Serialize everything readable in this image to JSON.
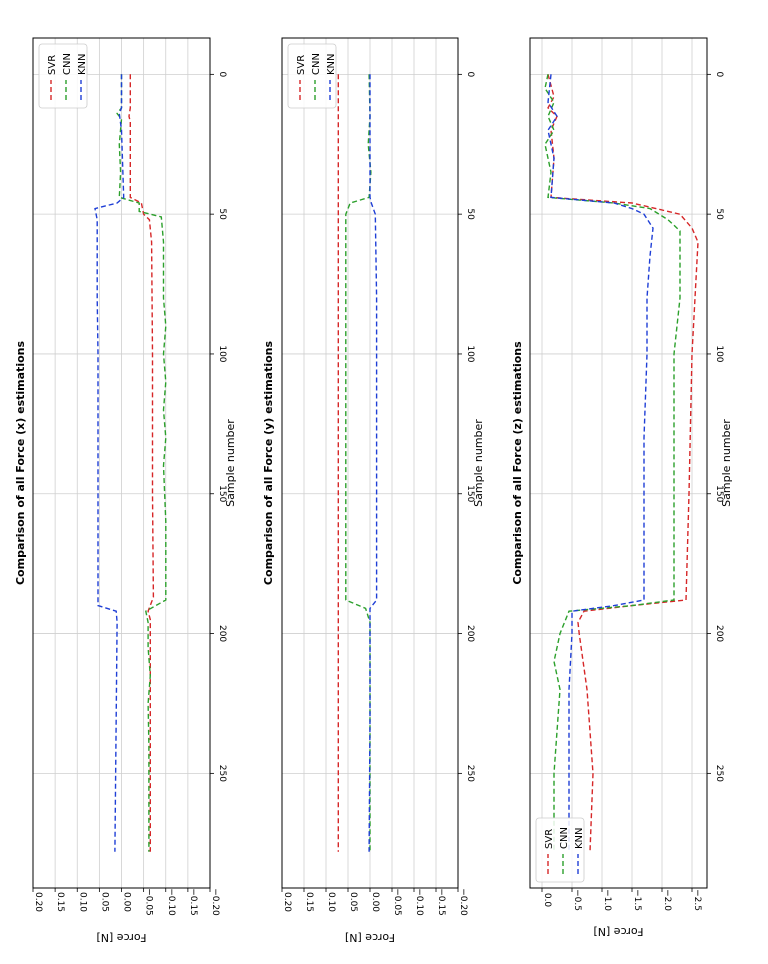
{
  "chart_data": [
    {
      "type": "line",
      "title": "Comparison of all Force (x) estimations",
      "xlabel": "Sample number",
      "ylabel": "Force [N]",
      "xlim": [
        -13,
        291
      ],
      "ylim": [
        -0.2,
        0.2
      ],
      "xticks": [
        0,
        50,
        100,
        150,
        200,
        250
      ],
      "xtick_labels": [
        "0",
        "50",
        "100",
        "150",
        "200",
        "250"
      ],
      "yticks": [
        0.2,
        0.15,
        0.1,
        0.05,
        0.0,
        -0.05,
        -0.1,
        -0.15,
        -0.2
      ],
      "ytick_labels": [
        "0.20",
        "0.15",
        "0.10",
        "0.05",
        "0.00",
        "−0.05",
        "−0.10",
        "−0.15",
        "−0.20"
      ],
      "grid": true,
      "legend_position": "upper-right",
      "series": [
        {
          "name": "SVR",
          "color": "#d62728",
          "points": [
            [
              0,
              -0.02
            ],
            [
              12,
              -0.02
            ],
            [
              15,
              -0.017
            ],
            [
              17,
              -0.02
            ],
            [
              44,
              -0.02
            ],
            [
              46,
              -0.045
            ],
            [
              50,
              -0.05
            ],
            [
              52,
              -0.063
            ],
            [
              60,
              -0.068
            ],
            [
              100,
              -0.07
            ],
            [
              150,
              -0.07
            ],
            [
              187,
              -0.072
            ],
            [
              192,
              -0.06
            ],
            [
              195,
              -0.065
            ],
            [
              210,
              -0.065
            ],
            [
              278,
              -0.065
            ]
          ]
        },
        {
          "name": "CNN",
          "color": "#2ca02c",
          "points": [
            [
              0,
              0.0
            ],
            [
              12,
              0.0
            ],
            [
              14,
              0.01
            ],
            [
              16,
              0.0
            ],
            [
              25,
              0.005
            ],
            [
              35,
              0.002
            ],
            [
              44,
              0.005
            ],
            [
              46,
              -0.04
            ],
            [
              49,
              -0.04
            ],
            [
              51,
              -0.09
            ],
            [
              60,
              -0.095
            ],
            [
              80,
              -0.095
            ],
            [
              90,
              -0.1
            ],
            [
              100,
              -0.095
            ],
            [
              110,
              -0.1
            ],
            [
              120,
              -0.095
            ],
            [
              130,
              -0.1
            ],
            [
              140,
              -0.095
            ],
            [
              160,
              -0.1
            ],
            [
              188,
              -0.1
            ],
            [
              192,
              -0.055
            ],
            [
              196,
              -0.06
            ],
            [
              205,
              -0.06
            ],
            [
              215,
              -0.065
            ],
            [
              225,
              -0.06
            ],
            [
              240,
              -0.062
            ],
            [
              278,
              -0.062
            ]
          ]
        },
        {
          "name": "KNN",
          "color": "#1f3fd6",
          "points": [
            [
              0,
              0.0
            ],
            [
              12,
              0.0
            ],
            [
              14,
              0.005
            ],
            [
              20,
              0.0
            ],
            [
              44,
              -0.005
            ],
            [
              46,
              0.01
            ],
            [
              48,
              0.06
            ],
            [
              52,
              0.055
            ],
            [
              80,
              0.055
            ],
            [
              100,
              0.053
            ],
            [
              150,
              0.053
            ],
            [
              190,
              0.053
            ],
            [
              192,
              0.012
            ],
            [
              196,
              0.01
            ],
            [
              278,
              0.015
            ]
          ]
        }
      ]
    },
    {
      "type": "line",
      "title": "Comparison of all Force (y) estimations",
      "xlabel": "Sample number",
      "ylabel": "Force [N]",
      "xlim": [
        -13,
        291
      ],
      "ylim": [
        -0.2,
        0.2
      ],
      "xticks": [
        0,
        50,
        100,
        150,
        200,
        250
      ],
      "xtick_labels": [
        "0",
        "50",
        "100",
        "150",
        "200",
        "250"
      ],
      "yticks": [
        0.2,
        0.15,
        0.1,
        0.05,
        0.0,
        -0.05,
        -0.1,
        -0.15,
        -0.2
      ],
      "ytick_labels": [
        "0.20",
        "0.15",
        "0.10",
        "0.05",
        "0.00",
        "−0.05",
        "−0.10",
        "−0.15",
        "−0.20"
      ],
      "grid": true,
      "legend_position": "upper-right",
      "series": [
        {
          "name": "SVR",
          "color": "#d62728",
          "points": [
            [
              0,
              0.072
            ],
            [
              100,
              0.072
            ],
            [
              200,
              0.072
            ],
            [
              278,
              0.072
            ]
          ]
        },
        {
          "name": "CNN",
          "color": "#2ca02c",
          "points": [
            [
              0,
              0.002
            ],
            [
              15,
              0.0
            ],
            [
              25,
              0.004
            ],
            [
              35,
              -0.002
            ],
            [
              44,
              0.002
            ],
            [
              46,
              0.045
            ],
            [
              50,
              0.055
            ],
            [
              100,
              0.055
            ],
            [
              150,
              0.055
            ],
            [
              188,
              0.055
            ],
            [
              191,
              0.01
            ],
            [
              196,
              0.0
            ],
            [
              278,
              0.0
            ]
          ]
        },
        {
          "name": "KNN",
          "color": "#1f3fd6",
          "points": [
            [
              0,
              0.0
            ],
            [
              20,
              0.0
            ],
            [
              44,
              0.0
            ],
            [
              46,
              -0.003
            ],
            [
              50,
              -0.012
            ],
            [
              80,
              -0.015
            ],
            [
              150,
              -0.015
            ],
            [
              188,
              -0.015
            ],
            [
              191,
              0.0
            ],
            [
              230,
              0.0
            ],
            [
              278,
              0.002
            ]
          ]
        }
      ]
    },
    {
      "type": "line",
      "title": "Comparison of all Force (z) estimations",
      "xlabel": "Sample number",
      "ylabel": "Force [N]",
      "xlim": [
        -13,
        291
      ],
      "ylim": [
        -2.75,
        0.2
      ],
      "xticks": [
        0,
        50,
        100,
        150,
        200,
        250
      ],
      "xtick_labels": [
        "0",
        "50",
        "100",
        "150",
        "200",
        "250"
      ],
      "yticks": [
        0.0,
        -0.5,
        -1.0,
        -1.5,
        -2.0,
        -2.5
      ],
      "ytick_labels": [
        "0.0",
        "−0.5",
        "−1.0",
        "−1.5",
        "−2.0",
        "−2.5"
      ],
      "grid": true,
      "legend_position": "lower-right",
      "series": [
        {
          "name": "SVR",
          "color": "#d62728",
          "points": [
            [
              0,
              -0.1
            ],
            [
              8,
              -0.2
            ],
            [
              12,
              -0.1
            ],
            [
              15,
              -0.25
            ],
            [
              20,
              -0.15
            ],
            [
              30,
              -0.2
            ],
            [
              44,
              -0.15
            ],
            [
              46,
              -1.5
            ],
            [
              48,
              -1.9
            ],
            [
              50,
              -2.3
            ],
            [
              55,
              -2.5
            ],
            [
              60,
              -2.6
            ],
            [
              80,
              -2.55
            ],
            [
              100,
              -2.5
            ],
            [
              150,
              -2.45
            ],
            [
              188,
              -2.4
            ],
            [
              190,
              -1.5
            ],
            [
              192,
              -0.7
            ],
            [
              196,
              -0.6
            ],
            [
              200,
              -0.62
            ],
            [
              220,
              -0.75
            ],
            [
              250,
              -0.85
            ],
            [
              278,
              -0.8
            ]
          ]
        },
        {
          "name": "CNN",
          "color": "#2ca02c",
          "points": [
            [
              0,
              -0.1
            ],
            [
              5,
              -0.05
            ],
            [
              10,
              -0.2
            ],
            [
              15,
              -0.1
            ],
            [
              20,
              -0.2
            ],
            [
              25,
              -0.05
            ],
            [
              35,
              -0.15
            ],
            [
              44,
              -0.1
            ],
            [
              46,
              -1.2
            ],
            [
              48,
              -1.8
            ],
            [
              52,
              -2.1
            ],
            [
              56,
              -2.3
            ],
            [
              80,
              -2.3
            ],
            [
              100,
              -2.2
            ],
            [
              130,
              -2.2
            ],
            [
              150,
              -2.2
            ],
            [
              188,
              -2.2
            ],
            [
              190,
              -1.5
            ],
            [
              192,
              -0.45
            ],
            [
              200,
              -0.3
            ],
            [
              210,
              -0.2
            ],
            [
              220,
              -0.3
            ],
            [
              250,
              -0.2
            ],
            [
              278,
              -0.2
            ]
          ]
        },
        {
          "name": "KNN",
          "color": "#1f3fd6",
          "points": [
            [
              0,
              -0.15
            ],
            [
              10,
              -0.1
            ],
            [
              15,
              -0.25
            ],
            [
              20,
              -0.1
            ],
            [
              30,
              -0.2
            ],
            [
              44,
              -0.15
            ],
            [
              46,
              -1.2
            ],
            [
              48,
              -1.5
            ],
            [
              50,
              -1.7
            ],
            [
              55,
              -1.85
            ],
            [
              65,
              -1.8
            ],
            [
              80,
              -1.75
            ],
            [
              100,
              -1.75
            ],
            [
              130,
              -1.7
            ],
            [
              150,
              -1.7
            ],
            [
              188,
              -1.7
            ],
            [
              190,
              -1.2
            ],
            [
              192,
              -0.5
            ],
            [
              200,
              -0.5
            ],
            [
              220,
              -0.45
            ],
            [
              250,
              -0.45
            ],
            [
              278,
              -0.45
            ]
          ]
        }
      ]
    }
  ]
}
